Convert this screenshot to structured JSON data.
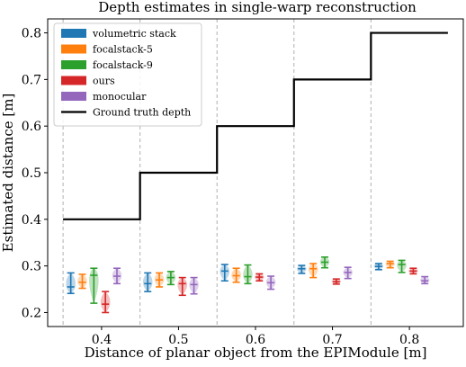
{
  "chart_data": {
    "type": "violin",
    "title": "Depth estimates in single-warp reconstruction",
    "xlabel": "Distance of planar object from the EPIModule [m]",
    "ylabel": "Estimated distance [m]",
    "xlim": [
      0.33,
      0.87
    ],
    "ylim": [
      0.17,
      0.83
    ],
    "xticks": [
      0.4,
      0.5,
      0.6,
      0.7,
      0.8
    ],
    "xtick_labels": [
      "0.4",
      "0.5",
      "0.6",
      "0.7",
      "0.8"
    ],
    "yticks": [
      0.2,
      0.3,
      0.4,
      0.5,
      0.6,
      0.7,
      0.8
    ],
    "ytick_labels": [
      "0.2",
      "0.3",
      "0.4",
      "0.5",
      "0.6",
      "0.7",
      "0.8"
    ],
    "vlines": [
      0.35,
      0.45,
      0.55,
      0.65,
      0.75
    ],
    "grid": "vertical dashed at bin boundaries",
    "legend_position": "top-left",
    "ground_truth": {
      "name": "Ground truth depth",
      "color": "#000000",
      "steps": [
        {
          "x0": 0.35,
          "x1": 0.45,
          "y": 0.4
        },
        {
          "x0": 0.45,
          "x1": 0.55,
          "y": 0.5
        },
        {
          "x0": 0.55,
          "x1": 0.65,
          "y": 0.6
        },
        {
          "x0": 0.65,
          "x1": 0.75,
          "y": 0.7
        },
        {
          "x0": 0.75,
          "x1": 0.85,
          "y": 0.8
        }
      ]
    },
    "series": [
      {
        "name": "volumetric stack",
        "color": "#1f77b4",
        "points": [
          {
            "x": 0.36,
            "min": 0.241,
            "median": 0.255,
            "max": 0.285
          },
          {
            "x": 0.46,
            "min": 0.245,
            "median": 0.262,
            "max": 0.285
          },
          {
            "x": 0.56,
            "min": 0.268,
            "median": 0.289,
            "max": 0.303
          },
          {
            "x": 0.66,
            "min": 0.284,
            "median": 0.294,
            "max": 0.301
          },
          {
            "x": 0.76,
            "min": 0.292,
            "median": 0.299,
            "max": 0.305
          }
        ]
      },
      {
        "name": "focalstack-5",
        "color": "#ff7f0e",
        "points": [
          {
            "x": 0.375,
            "min": 0.252,
            "median": 0.265,
            "max": 0.282
          },
          {
            "x": 0.475,
            "min": 0.255,
            "median": 0.27,
            "max": 0.285
          },
          {
            "x": 0.575,
            "min": 0.265,
            "median": 0.279,
            "max": 0.295
          },
          {
            "x": 0.675,
            "min": 0.275,
            "median": 0.294,
            "max": 0.305
          },
          {
            "x": 0.775,
            "min": 0.296,
            "median": 0.305,
            "max": 0.31
          }
        ]
      },
      {
        "name": "focalstack-9",
        "color": "#2ca02c",
        "points": [
          {
            "x": 0.39,
            "min": 0.22,
            "median": 0.28,
            "max": 0.295
          },
          {
            "x": 0.49,
            "min": 0.26,
            "median": 0.275,
            "max": 0.288
          },
          {
            "x": 0.59,
            "min": 0.262,
            "median": 0.277,
            "max": 0.302
          },
          {
            "x": 0.69,
            "min": 0.296,
            "median": 0.308,
            "max": 0.319
          },
          {
            "x": 0.79,
            "min": 0.286,
            "median": 0.303,
            "max": 0.312
          }
        ]
      },
      {
        "name": "ours",
        "color": "#d62728",
        "points": [
          {
            "x": 0.405,
            "min": 0.2,
            "median": 0.218,
            "max": 0.245
          },
          {
            "x": 0.505,
            "min": 0.237,
            "median": 0.262,
            "max": 0.275
          },
          {
            "x": 0.605,
            "min": 0.268,
            "median": 0.276,
            "max": 0.283
          },
          {
            "x": 0.705,
            "min": 0.261,
            "median": 0.266,
            "max": 0.272
          },
          {
            "x": 0.805,
            "min": 0.283,
            "median": 0.289,
            "max": 0.295
          }
        ]
      },
      {
        "name": "monocular",
        "color": "#9467bd",
        "points": [
          {
            "x": 0.42,
            "min": 0.262,
            "median": 0.278,
            "max": 0.295
          },
          {
            "x": 0.52,
            "min": 0.24,
            "median": 0.26,
            "max": 0.275
          },
          {
            "x": 0.62,
            "min": 0.25,
            "median": 0.264,
            "max": 0.278
          },
          {
            "x": 0.72,
            "min": 0.273,
            "median": 0.286,
            "max": 0.297
          },
          {
            "x": 0.82,
            "min": 0.262,
            "median": 0.268,
            "max": 0.277
          }
        ]
      }
    ]
  }
}
